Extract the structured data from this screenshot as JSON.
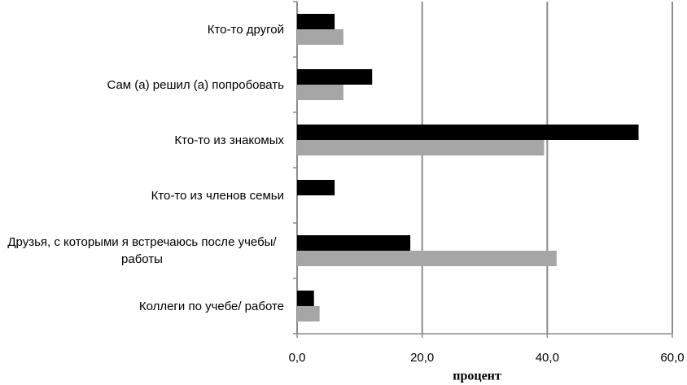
{
  "chart_data": {
    "type": "bar",
    "orientation": "horizontal",
    "xlabel": "процент",
    "categories": [
      "Кто-то другой",
      "Сам (а) решил (а) попробовать",
      "Кто-то из знакомых",
      "Кто-то из членов семьи",
      "Друзья, с которыми я встречаюсь после учебы/работы",
      "Коллеги по учебе/ работе"
    ],
    "series": [
      {
        "color": "#000000",
        "values": [
          6.0,
          12.0,
          54.6,
          6.0,
          18.1,
          2.7
        ]
      },
      {
        "color": "#a6a6a6",
        "values": [
          7.4,
          7.4,
          39.5,
          null,
          41.5,
          3.6
        ]
      }
    ],
    "xlim": [
      0,
      60
    ],
    "xticks": [
      {
        "value": 0,
        "label": "0,0"
      },
      {
        "value": 20,
        "label": "20,0"
      },
      {
        "value": 40,
        "label": "40,0"
      },
      {
        "value": 60,
        "label": "60,0"
      }
    ],
    "grid": true
  }
}
